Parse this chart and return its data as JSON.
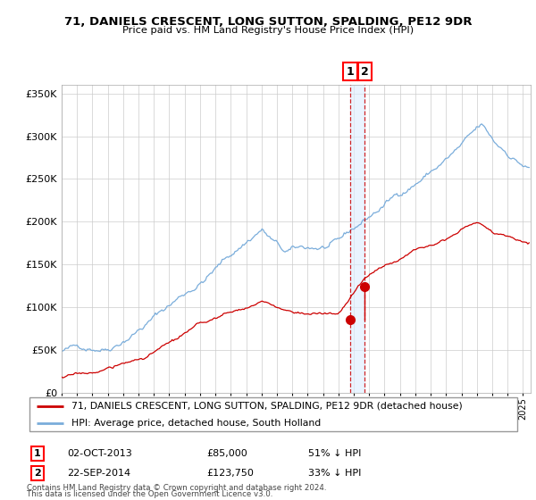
{
  "title1": "71, DANIELS CRESCENT, LONG SUTTON, SPALDING, PE12 9DR",
  "title2": "Price paid vs. HM Land Registry's House Price Index (HPI)",
  "legend_line1": "71, DANIELS CRESCENT, LONG SUTTON, SPALDING, PE12 9DR (detached house)",
  "legend_line2": "HPI: Average price, detached house, South Holland",
  "annotation1_date": "02-OCT-2013",
  "annotation1_price": "£85,000",
  "annotation1_hpi": "51% ↓ HPI",
  "annotation2_date": "22-SEP-2014",
  "annotation2_price": "£123,750",
  "annotation2_hpi": "33% ↓ HPI",
  "footnote1": "Contains HM Land Registry data © Crown copyright and database right 2024.",
  "footnote2": "This data is licensed under the Open Government Licence v3.0.",
  "hpi_color": "#7aaddb",
  "price_color": "#cc0000",
  "background_color": "#ffffff",
  "grid_color": "#cccccc",
  "ylim": [
    0,
    360000
  ],
  "xlim_start": 1995,
  "xlim_end": 2025.5,
  "sale1_x": 2013.75,
  "sale1_y": 85000,
  "sale2_x": 2014.72,
  "sale2_y": 123750,
  "vspan_color": "#ddeeff",
  "vspan_alpha": 0.6
}
